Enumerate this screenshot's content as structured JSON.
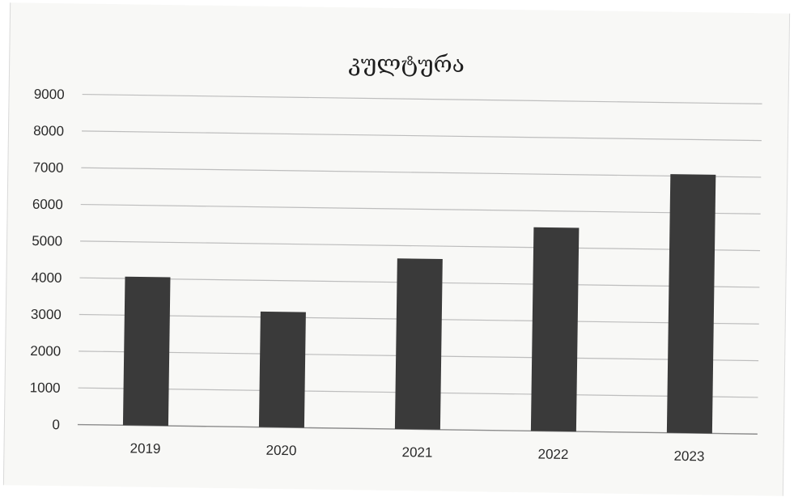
{
  "chart_data": {
    "type": "bar",
    "title": "კულტურა",
    "categories": [
      "2019",
      "2020",
      "2021",
      "2022",
      "2023"
    ],
    "values": [
      4050,
      3150,
      4650,
      5550,
      7050
    ],
    "ylim": [
      0,
      9000
    ],
    "yticks": [
      0,
      1000,
      2000,
      3000,
      4000,
      5000,
      6000,
      7000,
      8000,
      9000
    ],
    "grid": true,
    "bar_color": "#3a3a3a"
  }
}
